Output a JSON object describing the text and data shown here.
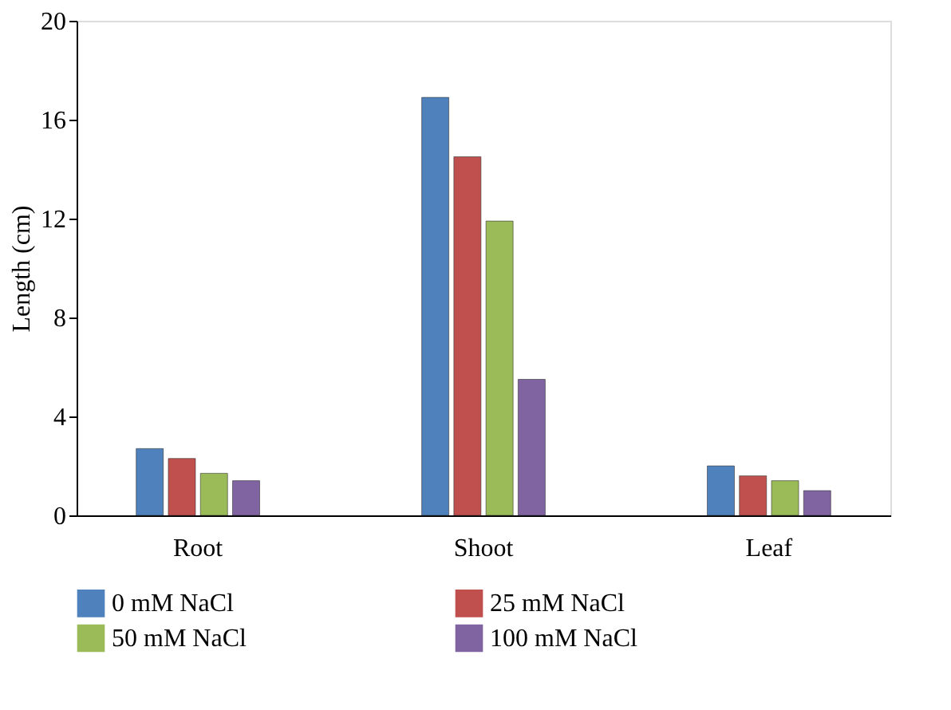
{
  "chart_data": {
    "type": "bar",
    "ylabel": "Length (cm)",
    "categories": [
      "Root",
      "Shoot",
      "Leaf"
    ],
    "series": [
      {
        "name": "0 mM NaCl",
        "color": "#4f81bd",
        "values": [
          2.7,
          16.9,
          2.0
        ]
      },
      {
        "name": "25 mM NaCl",
        "color": "#c0504d",
        "values": [
          2.3,
          14.5,
          1.6
        ]
      },
      {
        "name": "50 mM NaCl",
        "color": "#9bbb59",
        "values": [
          1.7,
          11.9,
          1.4
        ]
      },
      {
        "name": "100 mM NaCl",
        "color": "#8064a2",
        "values": [
          1.4,
          5.5,
          1.0
        ]
      }
    ],
    "ylim": [
      0,
      20
    ],
    "yticks": [
      0,
      4,
      8,
      12,
      16,
      20
    ],
    "grid": false,
    "legend": "bottom"
  }
}
